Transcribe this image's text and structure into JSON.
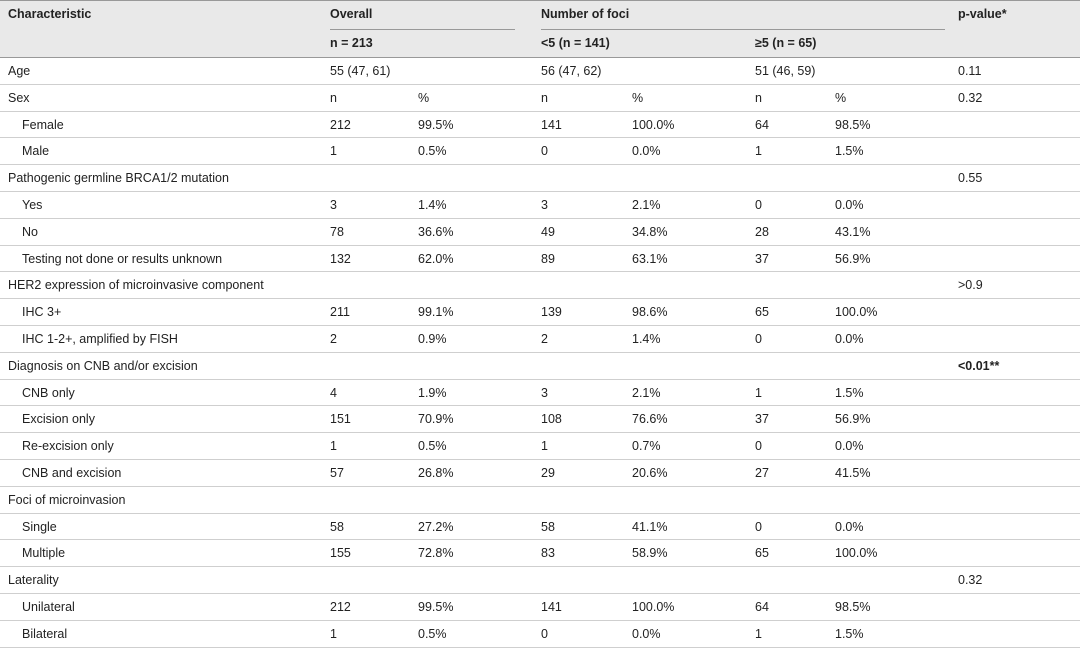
{
  "header": {
    "characteristic": "Characteristic",
    "overall": "Overall",
    "foci": "Number of foci",
    "pvalue": "p-value*",
    "overall_n": "n = 213",
    "lt5_n": "<5 (n = 141)",
    "ge5_n": "≥5 (n = 65)"
  },
  "age": {
    "label": "Age",
    "cells": [
      "55 (47, 61)",
      "56 (47, 62)",
      "51 (46, 59)"
    ],
    "p": "0.11"
  },
  "groups": [
    {
      "label": "Sex",
      "cells": [
        "n",
        "%",
        "n",
        "%",
        "n",
        "%"
      ],
      "p": "0.32",
      "items": [
        {
          "label": "Female",
          "cells": [
            "212",
            "99.5%",
            "141",
            "100.0%",
            "64",
            "98.5%"
          ]
        },
        {
          "label": "Male",
          "cells": [
            "1",
            "0.5%",
            "0",
            "0.0%",
            "1",
            "1.5%"
          ]
        }
      ]
    },
    {
      "label": "Pathogenic germline BRCA1/2 mutation",
      "p": "0.55",
      "items": [
        {
          "label": "Yes",
          "cells": [
            "3",
            "1.4%",
            "3",
            "2.1%",
            "0",
            "0.0%"
          ]
        },
        {
          "label": "No",
          "cells": [
            "78",
            "36.6%",
            "49",
            "34.8%",
            "28",
            "43.1%"
          ]
        },
        {
          "label": "Testing not done or results unknown",
          "cells": [
            "132",
            "62.0%",
            "89",
            "63.1%",
            "37",
            "56.9%"
          ]
        }
      ]
    },
    {
      "label": "HER2 expression of microinvasive component",
      "p": ">0.9",
      "items": [
        {
          "label": "IHC 3+",
          "cells": [
            "211",
            "99.1%",
            "139",
            "98.6%",
            "65",
            "100.0%"
          ]
        },
        {
          "label": "IHC 1-2+, amplified by FISH",
          "cells": [
            "2",
            "0.9%",
            "2",
            "1.4%",
            "0",
            "0.0%"
          ]
        }
      ]
    },
    {
      "label": "Diagnosis on CNB and/or excision",
      "p": "<0.01**",
      "items": [
        {
          "label": "CNB only",
          "cells": [
            "4",
            "1.9%",
            "3",
            "2.1%",
            "1",
            "1.5%"
          ]
        },
        {
          "label": "Excision only",
          "cells": [
            "151",
            "70.9%",
            "108",
            "76.6%",
            "37",
            "56.9%"
          ]
        },
        {
          "label": "Re-excision only",
          "cells": [
            "1",
            "0.5%",
            "1",
            "0.7%",
            "0",
            "0.0%"
          ]
        },
        {
          "label": "CNB and excision",
          "cells": [
            "57",
            "26.8%",
            "29",
            "20.6%",
            "27",
            "41.5%"
          ]
        }
      ]
    },
    {
      "label": "Foci of microinvasion",
      "items": [
        {
          "label": "Single",
          "cells": [
            "58",
            "27.2%",
            "58",
            "41.1%",
            "0",
            "0.0%"
          ]
        },
        {
          "label": "Multiple",
          "cells": [
            "155",
            "72.8%",
            "83",
            "58.9%",
            "65",
            "100.0%"
          ]
        }
      ]
    },
    {
      "label": "Laterality",
      "p": "0.32",
      "items": [
        {
          "label": "Unilateral",
          "cells": [
            "212",
            "99.5%",
            "141",
            "100.0%",
            "64",
            "98.5%"
          ]
        },
        {
          "label": "Bilateral",
          "cells": [
            "1",
            "0.5%",
            "0",
            "0.0%",
            "1",
            "1.5%"
          ]
        }
      ]
    }
  ]
}
